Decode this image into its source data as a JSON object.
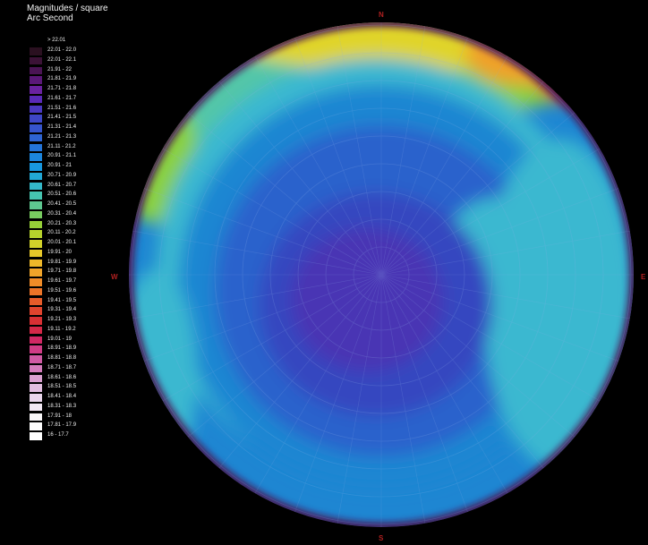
{
  "legend": {
    "title_line1": "Magnitudes / square",
    "title_line2": "Arc Second",
    "header": {
      "label": "> 22.01",
      "color": "#000000"
    },
    "rows": [
      {
        "label": "22.01 - 22.0",
        "color": "#2a1020"
      },
      {
        "label": "22.01 - 22.1",
        "color": "#3b1236"
      },
      {
        "label": "21.91 - 22",
        "color": "#4a1454"
      },
      {
        "label": "21.81 - 21.9",
        "color": "#5a1878"
      },
      {
        "label": "21.71 - 21.8",
        "color": "#6a22a0"
      },
      {
        "label": "21.61 - 21.7",
        "color": "#5a2ab8"
      },
      {
        "label": "21.51 - 21.6",
        "color": "#4a38c0"
      },
      {
        "label": "21.41 - 21.5",
        "color": "#3e46c6"
      },
      {
        "label": "21.31 - 21.4",
        "color": "#3654cc"
      },
      {
        "label": "21.21 - 21.3",
        "color": "#2e64d2"
      },
      {
        "label": "21.11 - 21.2",
        "color": "#2474d8"
      },
      {
        "label": "20.91 - 21.1",
        "color": "#1c86de"
      },
      {
        "label": "20.91 - 21",
        "color": "#1898e0"
      },
      {
        "label": "20.71 - 20.9",
        "color": "#22a8d6"
      },
      {
        "label": "20.61 - 20.7",
        "color": "#34b8c8"
      },
      {
        "label": "20.51 - 20.6",
        "color": "#46c4b0"
      },
      {
        "label": "20.41 - 20.5",
        "color": "#5ec890"
      },
      {
        "label": "20.31 - 20.4",
        "color": "#78cc60"
      },
      {
        "label": "20.21 - 20.3",
        "color": "#96d038"
      },
      {
        "label": "20.11 - 20.2",
        "color": "#b6d22c"
      },
      {
        "label": "20.01 - 20.1",
        "color": "#d2d22a"
      },
      {
        "label": "19.91 - 20",
        "color": "#e6c82a"
      },
      {
        "label": "19.81 - 19.9",
        "color": "#eeb82a"
      },
      {
        "label": "19.71 - 19.8",
        "color": "#f0a42a"
      },
      {
        "label": "19.61 - 19.7",
        "color": "#f08c28"
      },
      {
        "label": "19.51 - 19.6",
        "color": "#ec7428"
      },
      {
        "label": "19.41 - 19.5",
        "color": "#e65c2a"
      },
      {
        "label": "19.31 - 19.4",
        "color": "#e0442e"
      },
      {
        "label": "19.21 - 19.3",
        "color": "#d83034"
      },
      {
        "label": "19.11 - 19.2",
        "color": "#d42848"
      },
      {
        "label": "19.01 - 19",
        "color": "#d02864"
      },
      {
        "label": "18.91 - 18.9",
        "color": "#d03c86"
      },
      {
        "label": "18.81 - 18.8",
        "color": "#d05aa4"
      },
      {
        "label": "18.71 - 18.7",
        "color": "#d47cbc"
      },
      {
        "label": "18.61 - 18.6",
        "color": "#daa0d0"
      },
      {
        "label": "18.51 - 18.5",
        "color": "#e2bee0"
      },
      {
        "label": "18.41 - 18.4",
        "color": "#ead6ec"
      },
      {
        "label": "18.31 - 18.3",
        "color": "#f2e8f4"
      },
      {
        "label": "17.91 - 18",
        "color": "#f8f6f8"
      },
      {
        "label": "17.81 - 17.9",
        "color": "#fcfcfc"
      },
      {
        "label": "16 - 17.7",
        "color": "#ffffff"
      }
    ]
  },
  "compass": {
    "north": "N",
    "south": "S",
    "east": "E",
    "west": "W"
  },
  "map": {
    "colors": {
      "horizon_dark": "#4a1454",
      "outer_blue": "#1e86d2",
      "cyan": "#3ab8d0",
      "teal": "#52c6a8",
      "green": "#8ad040",
      "yellow": "#e0d42a",
      "orange": "#f0a02a",
      "red": "#d83034",
      "magenta": "#9a2a9a",
      "mid_blue": "#2a62cc",
      "inner_blue": "#3646c0",
      "zenith_purple": "#4a36b4",
      "grid_line": "#8fb0e8",
      "compass_red": "#b02020"
    }
  }
}
